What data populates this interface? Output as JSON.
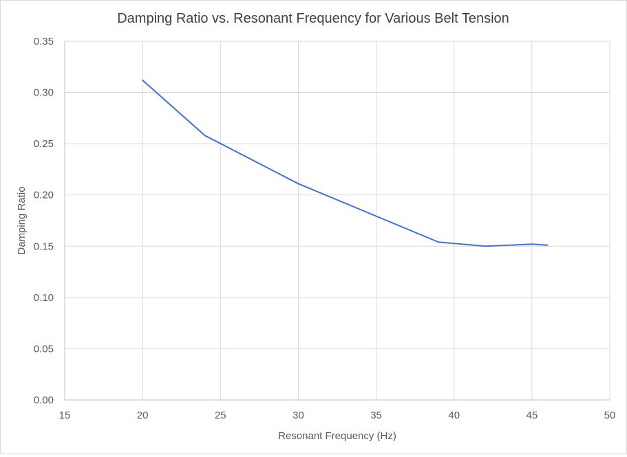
{
  "chart_data": {
    "type": "line",
    "title": "Damping Ratio vs. Resonant Frequency for Various Belt Tension",
    "xlabel": "Resonant Frequency (Hz)",
    "ylabel": "Damping Ratio",
    "xlim": [
      15,
      50
    ],
    "ylim": [
      0,
      0.35
    ],
    "x_ticks": [
      15,
      20,
      25,
      30,
      35,
      40,
      45,
      50
    ],
    "x_tick_labels": [
      "15",
      "20",
      "25",
      "30",
      "35",
      "40",
      "45",
      "50"
    ],
    "y_ticks": [
      0,
      0.05,
      0.1,
      0.15,
      0.2,
      0.25,
      0.3,
      0.35
    ],
    "y_tick_labels": [
      "0.00",
      "0.05",
      "0.10",
      "0.15",
      "0.20",
      "0.25",
      "0.30",
      "0.35"
    ],
    "grid": true,
    "legend": "none",
    "series": [
      {
        "color": "#4472c4",
        "x": [
          20,
          24,
          30,
          39,
          42,
          45,
          46
        ],
        "y": [
          0.312,
          0.258,
          0.211,
          0.154,
          0.15,
          0.152,
          0.151
        ]
      }
    ]
  }
}
